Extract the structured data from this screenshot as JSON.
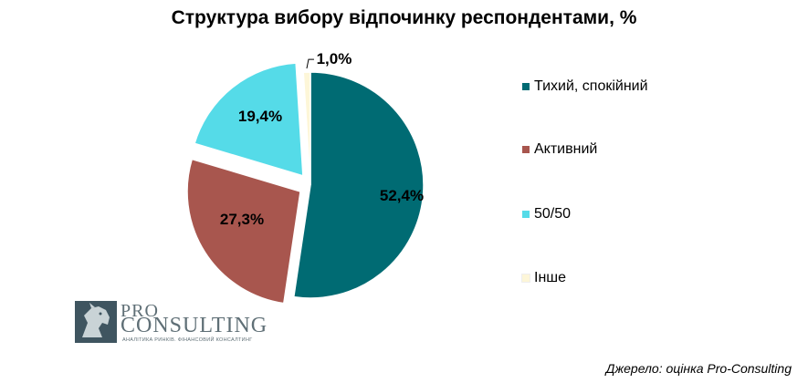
{
  "chart_data": {
    "type": "pie",
    "title": "Структура вибору відпочинку респондентами, %",
    "start_angle_deg": 0,
    "direction": "clockwise",
    "slices": [
      {
        "label": "Тихий, спокійний",
        "value": 52.4,
        "display": "52,4%",
        "color": "#006b73",
        "exploded": false
      },
      {
        "label": "Активний",
        "value": 27.3,
        "display": "27,3%",
        "color": "#a8564e",
        "exploded": true
      },
      {
        "label": "50/50",
        "value": 19.4,
        "display": "19,4%",
        "color": "#55dbe8",
        "exploded": true
      },
      {
        "label": "Інше",
        "value": 1.0,
        "display": "1,0%",
        "color": "#fdf6d8",
        "exploded": false
      }
    ],
    "legend_position": "right"
  },
  "logo": {
    "pro": "PRO",
    "consulting": "CONSULTING",
    "tagline": "АНАЛІТИКА РИНКІВ. ФІНАНСОВИЙ КОНСАЛТИНГ"
  },
  "source": "Джерело: оцінка Pro-Consulting"
}
